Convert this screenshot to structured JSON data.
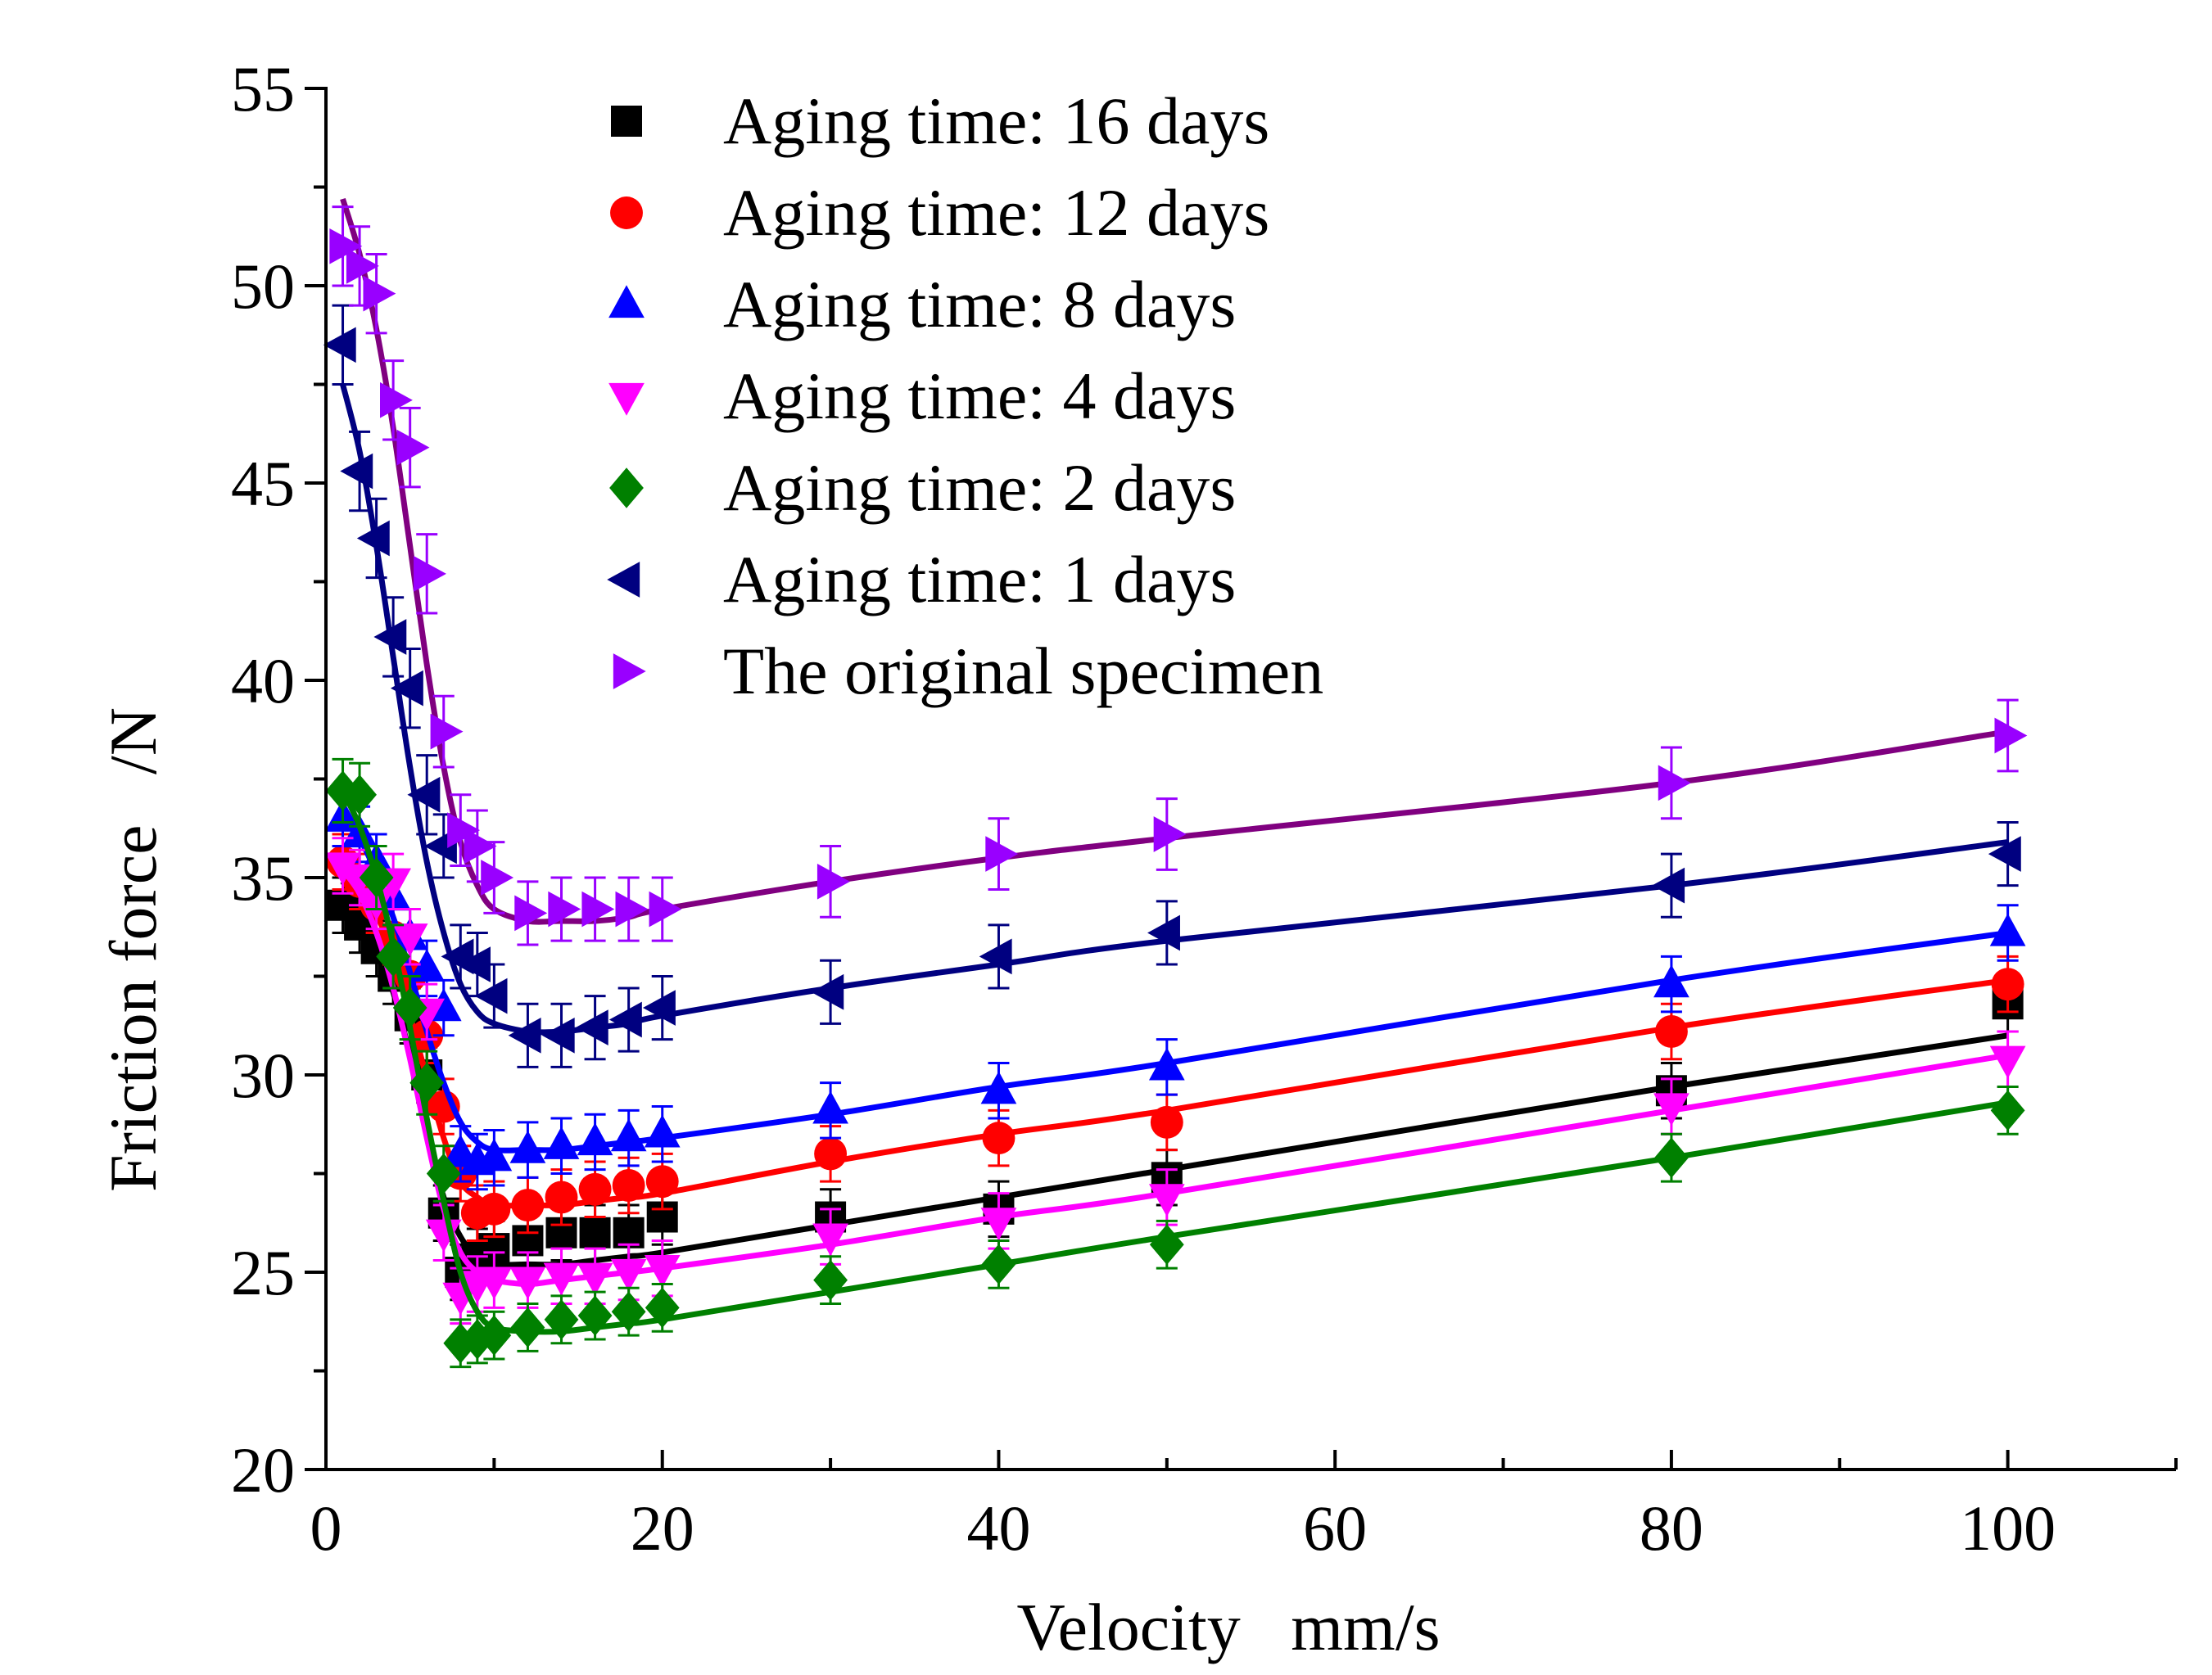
{
  "chart_data": {
    "type": "scatter",
    "xlabel": "Velocity   mm/s",
    "ylabel": "Friction force   /N",
    "xlim": [
      0,
      110
    ],
    "ylim": [
      20,
      55
    ],
    "xticks": [
      "0",
      "20",
      "40",
      "60",
      "80",
      "100"
    ],
    "yticks": [
      "20",
      "25",
      "30",
      "35",
      "40",
      "45",
      "50",
      "55"
    ],
    "legend_position": "top",
    "x": [
      1,
      2,
      3,
      4,
      5,
      6,
      7,
      8,
      9,
      10,
      12,
      14,
      16,
      18,
      20,
      30,
      40,
      50,
      80,
      100
    ],
    "series": [
      {
        "name": "Aging time: 16 days",
        "color": "#000000",
        "marker": "square",
        "values": [
          34.3,
          33.8,
          33.2,
          32.5,
          31.5,
          30.0,
          26.5,
          25.0,
          25.4,
          25.6,
          25.8,
          26.0,
          26.0,
          26.0,
          26.4,
          26.4,
          26.6,
          27.4,
          29.6,
          31.8
        ],
        "errors": [
          0.7,
          0.7,
          0.7,
          0.7,
          0.7,
          0.7,
          0.7,
          0.7,
          0.7,
          0.7,
          0.7,
          0.7,
          0.7,
          0.7,
          0.7,
          0.7,
          0.7,
          0.7,
          0.7,
          0.7
        ],
        "fit": [
          34.9,
          34.2,
          33.3,
          32.1,
          30.5,
          28.6,
          26.9,
          25.9,
          25.4,
          25.2,
          25.2,
          25.2,
          25.3,
          25.4,
          25.5,
          26.2,
          26.9,
          27.6,
          29.7,
          31.0
        ]
      },
      {
        "name": "Aging time: 12 days",
        "color": "#ff0000",
        "marker": "circle",
        "values": [
          35.4,
          34.9,
          34.3,
          33.5,
          32.5,
          31.0,
          29.2,
          27.5,
          26.5,
          26.6,
          26.7,
          26.9,
          27.1,
          27.2,
          27.3,
          28.0,
          28.4,
          28.8,
          31.1,
          32.3
        ],
        "errors": [
          0.7,
          0.7,
          0.7,
          0.7,
          0.7,
          0.7,
          0.7,
          0.7,
          0.7,
          0.7,
          0.7,
          0.7,
          0.7,
          0.7,
          0.7,
          0.7,
          0.7,
          0.7,
          0.7,
          0.7
        ],
        "fit": [
          35.6,
          35.0,
          34.1,
          33.0,
          31.5,
          29.9,
          28.4,
          27.3,
          26.9,
          26.7,
          26.7,
          26.7,
          26.8,
          26.9,
          27.0,
          27.8,
          28.5,
          29.1,
          31.2,
          32.4
        ]
      },
      {
        "name": "Aging time: 8 days",
        "color": "#0000ff",
        "marker": "triangle-up",
        "values": [
          36.5,
          36.1,
          35.4,
          34.5,
          33.5,
          32.7,
          31.7,
          28.0,
          27.8,
          27.9,
          28.1,
          28.2,
          28.3,
          28.4,
          28.5,
          29.1,
          29.6,
          30.2,
          32.3,
          33.6
        ],
        "errors": [
          0.7,
          0.7,
          0.7,
          0.7,
          0.7,
          0.7,
          0.7,
          0.7,
          0.7,
          0.7,
          0.7,
          0.7,
          0.7,
          0.7,
          0.7,
          0.7,
          0.7,
          0.7,
          0.7,
          0.7
        ],
        "fit": [
          36.6,
          36.0,
          35.1,
          34.0,
          32.6,
          31.1,
          29.8,
          28.8,
          28.3,
          28.1,
          28.1,
          28.1,
          28.2,
          28.3,
          28.4,
          29.0,
          29.7,
          30.3,
          32.4,
          33.6
        ]
      },
      {
        "name": "Aging time: 4 days",
        "color": "#ff00ff",
        "marker": "triangle-down",
        "values": [
          35.3,
          35.0,
          34.4,
          34.9,
          33.5,
          31.6,
          26.0,
          24.4,
          24.7,
          24.8,
          24.8,
          24.9,
          24.9,
          25.0,
          25.1,
          25.9,
          26.3,
          26.9,
          29.2,
          30.4
        ],
        "errors": [
          0.7,
          0.7,
          0.7,
          0.7,
          0.7,
          0.7,
          0.7,
          0.7,
          0.7,
          0.7,
          0.7,
          0.7,
          0.7,
          0.7,
          0.7,
          0.7,
          0.7,
          0.7,
          0.7,
          0.7
        ],
        "fit": [
          35.2,
          34.6,
          33.6,
          32.2,
          30.4,
          28.4,
          26.6,
          25.5,
          25.0,
          24.8,
          24.7,
          24.8,
          24.9,
          25.0,
          25.1,
          25.7,
          26.4,
          27.0,
          29.1,
          30.5
        ]
      },
      {
        "name": "Aging time: 2 days",
        "color": "#008000",
        "marker": "diamond",
        "values": [
          37.2,
          37.1,
          35.0,
          33.0,
          31.7,
          29.8,
          27.5,
          23.2,
          23.3,
          23.4,
          23.6,
          23.8,
          23.9,
          24.0,
          24.1,
          24.8,
          25.2,
          25.7,
          27.9,
          29.1
        ],
        "errors": [
          0.8,
          0.8,
          0.8,
          0.8,
          0.8,
          0.8,
          0.7,
          0.6,
          0.6,
          0.6,
          0.6,
          0.6,
          0.6,
          0.6,
          0.6,
          0.6,
          0.6,
          0.6,
          0.6,
          0.6
        ],
        "fit": [
          37.2,
          36.3,
          35.0,
          33.3,
          31.2,
          28.9,
          26.8,
          25.0,
          24.0,
          23.6,
          23.5,
          23.5,
          23.6,
          23.7,
          23.8,
          24.5,
          25.2,
          25.9,
          27.9,
          29.3
        ]
      },
      {
        "name": "Aging time: 1 days",
        "color": "#000080",
        "marker": "triangle-left",
        "values": [
          48.5,
          45.3,
          43.6,
          41.1,
          39.8,
          37.1,
          35.8,
          33.0,
          32.8,
          32.0,
          31.0,
          31.0,
          31.2,
          31.4,
          31.7,
          32.1,
          33.0,
          33.6,
          34.8,
          35.6
        ],
        "errors": [
          1.0,
          1.0,
          1.0,
          1.0,
          1.0,
          1.0,
          0.8,
          0.8,
          0.8,
          0.8,
          0.8,
          0.8,
          0.8,
          0.8,
          0.8,
          0.8,
          0.8,
          0.8,
          0.8,
          0.8
        ],
        "fit": [
          47.5,
          45.8,
          43.4,
          40.6,
          37.8,
          35.4,
          33.6,
          32.3,
          31.6,
          31.3,
          31.1,
          31.1,
          31.2,
          31.3,
          31.5,
          32.2,
          32.8,
          33.4,
          34.8,
          35.9
        ]
      },
      {
        "name": "The original specimen",
        "color": "#9900ff",
        "fit_color": "#800080",
        "marker": "triangle-right",
        "values": [
          51.0,
          50.5,
          49.8,
          47.1,
          45.9,
          42.7,
          38.7,
          36.2,
          35.8,
          35.0,
          34.1,
          34.2,
          34.2,
          34.2,
          34.2,
          34.9,
          35.6,
          36.1,
          37.4,
          38.6
        ],
        "errors": [
          1.0,
          1.0,
          1.0,
          1.0,
          1.0,
          1.0,
          0.9,
          0.9,
          0.9,
          0.9,
          0.8,
          0.8,
          0.8,
          0.8,
          0.8,
          0.9,
          0.9,
          0.9,
          0.9,
          0.9
        ],
        "fit": [
          52.2,
          50.8,
          48.9,
          46.4,
          43.4,
          40.4,
          37.8,
          35.9,
          34.8,
          34.2,
          33.9,
          33.9,
          33.9,
          34.0,
          34.2,
          34.9,
          35.5,
          36.0,
          37.4,
          38.7
        ]
      }
    ]
  }
}
